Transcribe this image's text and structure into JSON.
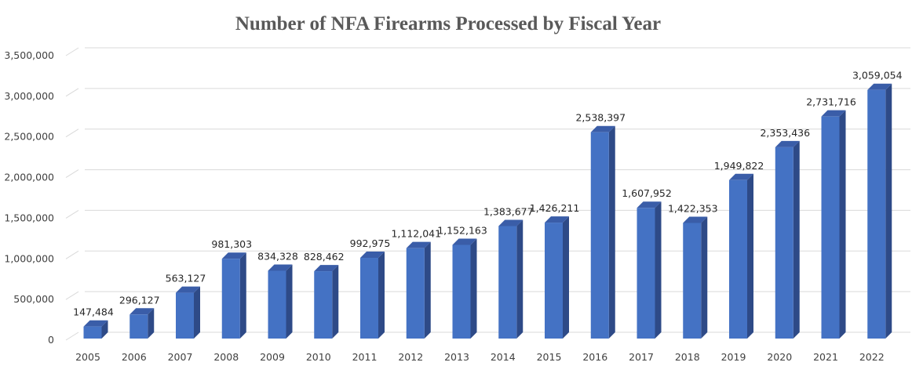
{
  "chart_data": {
    "type": "bar",
    "style": "3d-column",
    "title": "Number of NFA Firearms Processed by Fiscal Year",
    "xlabel": "",
    "ylabel": "",
    "ylim": [
      0,
      3500000
    ],
    "y_ticks": [
      0,
      500000,
      1000000,
      1500000,
      2000000,
      2500000,
      3000000,
      3500000
    ],
    "y_tick_labels": [
      "0",
      "500,000",
      "1,000,000",
      "1,500,000",
      "2,000,000",
      "2,500,000",
      "3,000,000",
      "3,500,000"
    ],
    "grid": true,
    "legend": "none",
    "categories": [
      "2005",
      "2006",
      "2007",
      "2008",
      "2009",
      "2010",
      "2011",
      "2012",
      "2013",
      "2014",
      "2015",
      "2016",
      "2017",
      "2018",
      "2019",
      "2020",
      "2021",
      "2022"
    ],
    "values": [
      147484,
      296127,
      563127,
      981303,
      834328,
      828462,
      992975,
      1112041,
      1152163,
      1383677,
      1426211,
      2538397,
      1607952,
      1422353,
      1949822,
      2353436,
      2731716,
      3059054
    ],
    "data_labels": [
      "147,484",
      "296,127",
      "563,127",
      "981,303",
      "834,328",
      "828,462",
      "992,975",
      "1,112,041",
      "1,152,163",
      "1,383,677",
      "1,426,211",
      "2,538,397",
      "1,607,952",
      "1,422,353",
      "1,949,822",
      "2,353,436",
      "2,731,716",
      "3,059,054"
    ],
    "colors": {
      "bar_front": "#4472C4",
      "bar_side": "#2E4A87",
      "bar_top": "#3A5DA8",
      "grid": "#D9D9D9"
    }
  }
}
